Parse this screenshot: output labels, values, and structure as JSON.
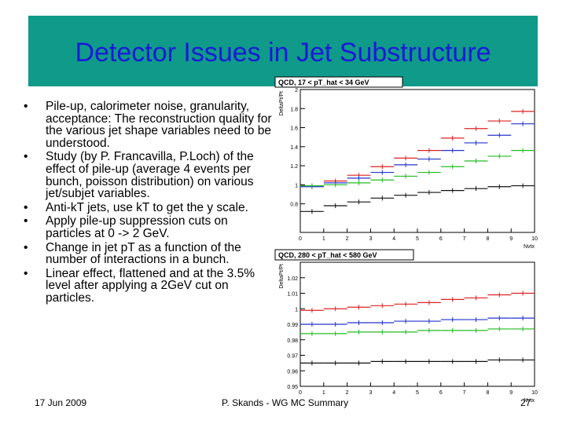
{
  "slide": {
    "title": "Detector Issues in Jet Substructure",
    "bullets": [
      "Pile-up, calorimeter noise, granularity, acceptance: The reconstruction quality for the various jet shape variables need to be understood.",
      "Study (by P. Francavilla, P.Loch) of the effect of pile-up (average 4 events per bunch, poisson distribution) on various jet/subjet variables.",
      "Anti-kT jets, use kT to get the y scale.",
      "Apply pile-up suppression cuts on particles at 0 -> 2 GeV.",
      "Change in jet pT as a function of the number of interactions in a bunch.",
      "Linear effect, flattened and at the 3.5% level after applying a 2GeV cut on particles."
    ],
    "footer": {
      "date": "17 Jun 2009",
      "center": "P. Skands - WG MC Summary",
      "page": "27"
    }
  },
  "chart_data": [
    {
      "type": "scatter",
      "title": "QCD, 17 < pT_hat < 34 GeV",
      "xlabel": "Nvtx",
      "ylabel": "DeltaPt/Pt",
      "xlim": [
        0,
        10
      ],
      "ylim": [
        0.5,
        2.0
      ],
      "x_ticks": [
        0,
        1,
        2,
        3,
        4,
        5,
        6,
        7,
        8,
        9,
        10
      ],
      "y_ticks": [
        0.8,
        1,
        1.2,
        1.4,
        1.6,
        1.8,
        2
      ],
      "series": [
        {
          "name": "red",
          "color": "#dd2222",
          "x": [
            0,
            1,
            2,
            3,
            4,
            5,
            6,
            7,
            8,
            9
          ],
          "y": [
            0.99,
            1.04,
            1.1,
            1.19,
            1.28,
            1.36,
            1.49,
            1.59,
            1.67,
            1.77
          ]
        },
        {
          "name": "blue",
          "color": "#2233cc",
          "x": [
            0,
            1,
            2,
            3,
            4,
            5,
            6,
            7,
            8,
            9
          ],
          "y": [
            0.98,
            1.02,
            1.07,
            1.13,
            1.21,
            1.27,
            1.36,
            1.44,
            1.52,
            1.64
          ]
        },
        {
          "name": "green",
          "color": "#22bb22",
          "x": [
            0,
            1,
            2,
            3,
            4,
            5,
            6,
            7,
            8,
            9
          ],
          "y": [
            0.99,
            1.0,
            1.02,
            1.05,
            1.09,
            1.13,
            1.19,
            1.25,
            1.3,
            1.36
          ]
        },
        {
          "name": "black",
          "color": "#111111",
          "x": [
            0,
            1,
            2,
            3,
            4,
            5,
            6,
            7,
            8,
            9
          ],
          "y": [
            0.72,
            0.78,
            0.82,
            0.86,
            0.89,
            0.92,
            0.94,
            0.96,
            0.98,
            0.99
          ]
        }
      ]
    },
    {
      "type": "scatter",
      "title": "QCD, 280 < pT_hat < 580 GeV",
      "xlabel": "Nvtx",
      "ylabel": "DeltaPt/Pt",
      "xlim": [
        0,
        10
      ],
      "ylim": [
        0.95,
        1.03
      ],
      "x_ticks": [
        0,
        1,
        2,
        3,
        4,
        5,
        6,
        7,
        8,
        9,
        10
      ],
      "y_ticks": [
        0.95,
        0.96,
        0.97,
        0.98,
        0.99,
        1,
        1.01,
        1.02
      ],
      "series": [
        {
          "name": "red",
          "color": "#dd2222",
          "x": [
            0,
            1,
            2,
            3,
            4,
            5,
            6,
            7,
            8,
            9
          ],
          "y": [
            0.999,
            1.0,
            1.001,
            1.002,
            1.003,
            1.004,
            1.006,
            1.007,
            1.009,
            1.01
          ]
        },
        {
          "name": "blue",
          "color": "#2233cc",
          "x": [
            0,
            1,
            2,
            3,
            4,
            5,
            6,
            7,
            8,
            9
          ],
          "y": [
            0.99,
            0.99,
            0.991,
            0.991,
            0.992,
            0.992,
            0.993,
            0.993,
            0.994,
            0.994
          ]
        },
        {
          "name": "green",
          "color": "#22bb22",
          "x": [
            0,
            1,
            2,
            3,
            4,
            5,
            6,
            7,
            8,
            9
          ],
          "y": [
            0.984,
            0.984,
            0.985,
            0.985,
            0.985,
            0.986,
            0.986,
            0.986,
            0.987,
            0.987
          ]
        },
        {
          "name": "black",
          "color": "#111111",
          "x": [
            0,
            1,
            2,
            3,
            4,
            5,
            6,
            7,
            8,
            9
          ],
          "y": [
            0.965,
            0.965,
            0.965,
            0.966,
            0.966,
            0.966,
            0.966,
            0.966,
            0.967,
            0.967
          ]
        }
      ]
    }
  ]
}
